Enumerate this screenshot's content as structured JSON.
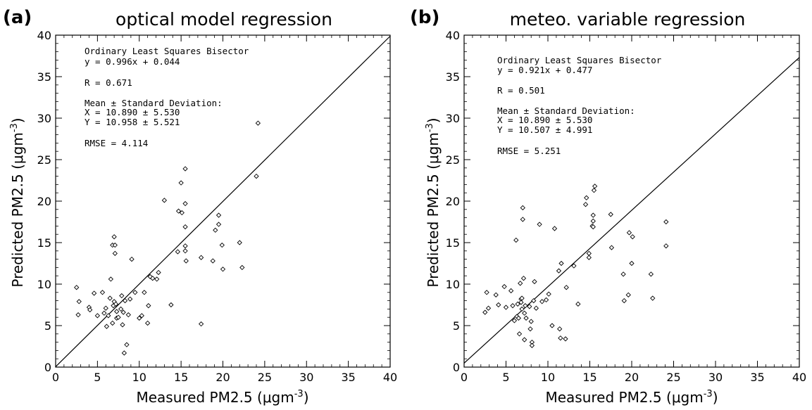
{
  "chart_data": [
    {
      "type": "scatter",
      "panel_label": "(a)",
      "title": "optical model regression",
      "xlabel": "Measured PM2.5 (μgm",
      "ylabel": "Predicted PM2.5 (μgm",
      "unit_exponent": "-3",
      "unit_close": ")",
      "xlim": [
        0,
        40
      ],
      "ylim": [
        0,
        40
      ],
      "ticks": [
        "0",
        "5",
        "10",
        "15",
        "20",
        "25",
        "30",
        "35",
        "40"
      ],
      "grid": false,
      "fit_line": {
        "slope": 0.996,
        "intercept": 0.044
      },
      "annotations": [
        "Ordinary Least Squares Bisector",
        "y = 0.996x + 0.044",
        "R = 0.671",
        "Mean ± Standard Deviation:",
        "X = 10.890 ± 5.530",
        "Y = 10.958 ± 5.521",
        "RMSE = 4.114"
      ],
      "points": [
        [
          2.5,
          9.6
        ],
        [
          2.7,
          6.3
        ],
        [
          2.8,
          7.9
        ],
        [
          4.0,
          7.2
        ],
        [
          4.1,
          6.9
        ],
        [
          4.6,
          8.9
        ],
        [
          5.0,
          6.2
        ],
        [
          5.6,
          9.0
        ],
        [
          5.8,
          6.5
        ],
        [
          6.0,
          7.1
        ],
        [
          6.1,
          4.9
        ],
        [
          6.3,
          6.2
        ],
        [
          6.5,
          8.3
        ],
        [
          6.6,
          10.6
        ],
        [
          6.8,
          14.7
        ],
        [
          6.8,
          5.3
        ],
        [
          6.9,
          7.4
        ],
        [
          7.0,
          15.7
        ],
        [
          7.0,
          7.9
        ],
        [
          7.1,
          14.7
        ],
        [
          7.1,
          13.7
        ],
        [
          7.2,
          7.6
        ],
        [
          7.3,
          6.7
        ],
        [
          7.3,
          5.9
        ],
        [
          7.5,
          6.0
        ],
        [
          7.8,
          7.0
        ],
        [
          7.9,
          8.6
        ],
        [
          8.0,
          5.1
        ],
        [
          8.1,
          6.6
        ],
        [
          8.2,
          1.7
        ],
        [
          8.3,
          8.0
        ],
        [
          8.5,
          2.7
        ],
        [
          8.7,
          6.3
        ],
        [
          8.9,
          8.2
        ],
        [
          9.1,
          13.0
        ],
        [
          9.5,
          9.0
        ],
        [
          10.0,
          5.9
        ],
        [
          10.3,
          6.2
        ],
        [
          10.6,
          9.0
        ],
        [
          11.1,
          7.4
        ],
        [
          11.0,
          5.3
        ],
        [
          11.3,
          10.9
        ],
        [
          11.6,
          10.7
        ],
        [
          12.1,
          10.6
        ],
        [
          12.3,
          11.4
        ],
        [
          13.0,
          20.1
        ],
        [
          13.8,
          7.5
        ],
        [
          14.6,
          13.9
        ],
        [
          14.7,
          18.8
        ],
        [
          15.0,
          22.2
        ],
        [
          15.1,
          18.6
        ],
        [
          15.5,
          23.9
        ],
        [
          15.5,
          19.7
        ],
        [
          15.5,
          16.9
        ],
        [
          15.5,
          14.6
        ],
        [
          15.5,
          14.0
        ],
        [
          15.6,
          12.8
        ],
        [
          17.4,
          13.2
        ],
        [
          17.4,
          5.2
        ],
        [
          18.8,
          12.8
        ],
        [
          19.1,
          16.5
        ],
        [
          19.5,
          17.2
        ],
        [
          19.5,
          18.3
        ],
        [
          19.9,
          14.7
        ],
        [
          20.0,
          11.8
        ],
        [
          22.0,
          15.0
        ],
        [
          22.3,
          12.0
        ],
        [
          24.0,
          23.0
        ],
        [
          24.2,
          29.4
        ]
      ]
    },
    {
      "type": "scatter",
      "panel_label": "(b)",
      "title": "meteo. variable regression",
      "xlabel": "Measured PM2.5 (μgm",
      "ylabel": "Predicted PM2.5 (μgm",
      "unit_exponent": "-3",
      "unit_close": ")",
      "xlim": [
        0,
        40
      ],
      "ylim": [
        0,
        40
      ],
      "ticks": [
        "0",
        "5",
        "10",
        "15",
        "20",
        "25",
        "30",
        "35",
        "40"
      ],
      "grid": false,
      "fit_line": {
        "slope": 0.921,
        "intercept": 0.477
      },
      "annotations": [
        "Ordinary Least Squares Bisector",
        "y = 0.921x + 0.477",
        "R = 0.501",
        "Mean ± Standard Deviation:",
        "X = 10.890 ± 5.530",
        "Y = 10.507 ± 4.991",
        "RMSE = 5.251"
      ],
      "points": [
        [
          2.5,
          6.6
        ],
        [
          2.7,
          9.0
        ],
        [
          2.9,
          7.1
        ],
        [
          3.8,
          8.7
        ],
        [
          4.1,
          7.5
        ],
        [
          4.8,
          9.7
        ],
        [
          5.0,
          7.2
        ],
        [
          5.6,
          9.2
        ],
        [
          5.8,
          7.4
        ],
        [
          6.0,
          5.6
        ],
        [
          6.2,
          15.3
        ],
        [
          6.3,
          6.1
        ],
        [
          6.4,
          7.6
        ],
        [
          6.5,
          5.9
        ],
        [
          6.6,
          4.0
        ],
        [
          6.7,
          10.1
        ],
        [
          6.8,
          8.2
        ],
        [
          6.8,
          7.8
        ],
        [
          6.9,
          8.3
        ],
        [
          6.9,
          7.0
        ],
        [
          7.0,
          19.2
        ],
        [
          7.0,
          17.8
        ],
        [
          7.1,
          10.7
        ],
        [
          7.2,
          6.5
        ],
        [
          7.2,
          3.3
        ],
        [
          7.3,
          7.4
        ],
        [
          7.4,
          5.9
        ],
        [
          7.8,
          7.3
        ],
        [
          7.9,
          4.6
        ],
        [
          8.0,
          5.5
        ],
        [
          8.1,
          3.0
        ],
        [
          8.1,
          2.6
        ],
        [
          8.3,
          8.0
        ],
        [
          8.4,
          10.3
        ],
        [
          8.6,
          7.1
        ],
        [
          9.0,
          17.2
        ],
        [
          9.3,
          7.9
        ],
        [
          9.8,
          8.1
        ],
        [
          10.1,
          8.8
        ],
        [
          10.5,
          5.0
        ],
        [
          10.8,
          16.7
        ],
        [
          11.3,
          11.6
        ],
        [
          11.4,
          4.6
        ],
        [
          11.5,
          3.5
        ],
        [
          11.6,
          12.5
        ],
        [
          12.1,
          3.4
        ],
        [
          12.2,
          9.6
        ],
        [
          13.1,
          12.2
        ],
        [
          13.6,
          7.6
        ],
        [
          14.5,
          19.6
        ],
        [
          14.6,
          20.4
        ],
        [
          14.9,
          13.2
        ],
        [
          14.9,
          13.7
        ],
        [
          15.3,
          17.0
        ],
        [
          15.4,
          16.9
        ],
        [
          15.4,
          17.6
        ],
        [
          15.4,
          18.3
        ],
        [
          15.5,
          21.3
        ],
        [
          15.6,
          21.8
        ],
        [
          17.5,
          18.4
        ],
        [
          17.6,
          14.4
        ],
        [
          19.0,
          11.2
        ],
        [
          19.1,
          8.0
        ],
        [
          19.6,
          8.7
        ],
        [
          19.7,
          16.2
        ],
        [
          20.0,
          12.5
        ],
        [
          20.1,
          15.7
        ],
        [
          22.3,
          11.2
        ],
        [
          22.5,
          8.3
        ],
        [
          24.1,
          17.5
        ],
        [
          24.1,
          14.6
        ]
      ]
    }
  ]
}
